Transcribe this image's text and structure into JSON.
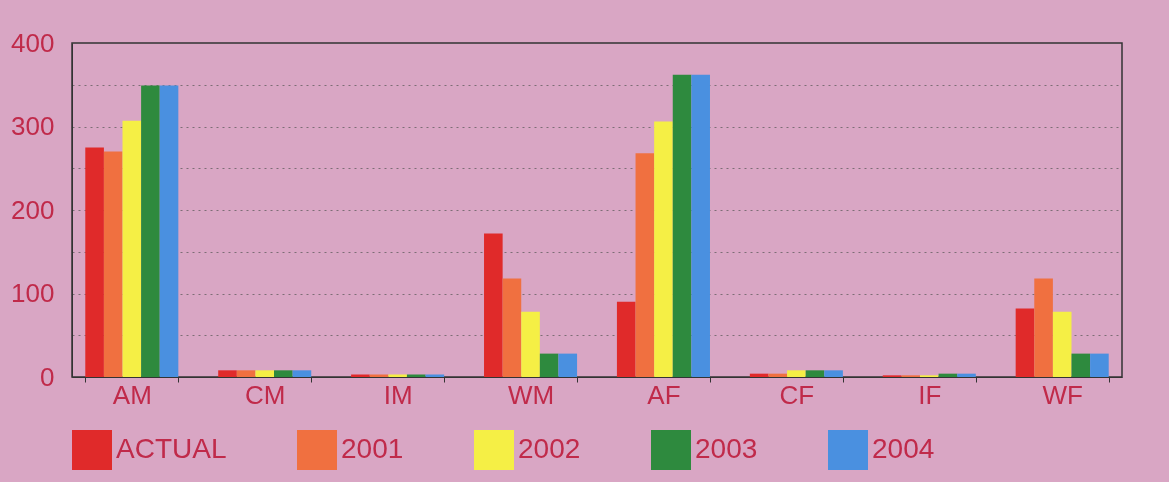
{
  "chart_data": {
    "type": "bar",
    "categories": [
      "AM",
      "CM",
      "IM",
      "WM",
      "AF",
      "CF",
      "IF",
      "WF"
    ],
    "series": [
      {
        "name": "ACTUAL",
        "color": "#e02a2a",
        "values": [
          275,
          8,
          3,
          172,
          90,
          4,
          2,
          82
        ]
      },
      {
        "name": "2001",
        "color": "#f07040",
        "values": [
          270,
          8,
          3,
          118,
          268,
          4,
          2,
          118
        ]
      },
      {
        "name": "2002",
        "color": "#f5ef45",
        "values": [
          307,
          8,
          3,
          78,
          306,
          8,
          2,
          78
        ]
      },
      {
        "name": "2003",
        "color": "#2e8a3e",
        "values": [
          349,
          8,
          3,
          28,
          362,
          8,
          4,
          28
        ]
      },
      {
        "name": "2004",
        "color": "#4a90e0",
        "values": [
          349,
          8,
          3,
          28,
          362,
          8,
          4,
          28
        ]
      }
    ],
    "ylim": [
      0,
      400
    ],
    "yticks": [
      0,
      {
        "value": 50,
        "label": null
      },
      100,
      {
        "value": 150,
        "label": null
      },
      200,
      {
        "value": 250,
        "label": null
      },
      300,
      {
        "value": 350,
        "label": null
      },
      400
    ],
    "grid": "y",
    "legend": "bottom"
  }
}
